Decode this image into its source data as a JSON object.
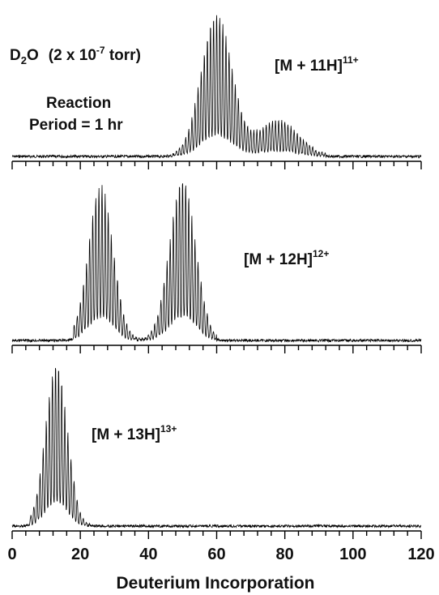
{
  "figure": {
    "conditions_line": "D2O (2 x 10-7 torr)",
    "reagent_formula": {
      "base": "D",
      "subscript": "2",
      "tail": "O"
    },
    "pressure": {
      "text": "(2 x 10",
      "exponent": "-7",
      "unit": " torr)"
    },
    "reaction_line_1": "Reaction",
    "reaction_line_2": "Period = 1 hr",
    "x_axis_label": "Deuterium Incorporation"
  },
  "chart_data": [
    {
      "type": "line",
      "panel": "top",
      "series": [
        {
          "name": "[M + 11H]11+",
          "label_base": "[M + 11H]",
          "label_sup": "11+",
          "envelopes": [
            {
              "center": 60.0,
              "width": 4.5,
              "height": 0.97
            },
            {
              "center": 78.0,
              "width": 6.0,
              "height": 0.25
            }
          ],
          "peak_range": [
            44,
            92
          ]
        }
      ],
      "xlim": [
        0,
        120
      ],
      "x_major_step": 20,
      "x_minor_step": 4,
      "tick_labels_shown": false
    },
    {
      "type": "line",
      "panel": "middle",
      "series": [
        {
          "name": "[M + 12H]12+",
          "label_base": "[M + 12H]",
          "label_sup": "12+",
          "envelopes": [
            {
              "center": 26.0,
              "width": 3.6,
              "height": 0.92
            },
            {
              "center": 50.0,
              "width": 3.8,
              "height": 0.96
            }
          ],
          "peak_range": [
            18,
            60
          ]
        }
      ],
      "xlim": [
        0,
        120
      ],
      "x_major_step": 20,
      "x_minor_step": 4,
      "tick_labels_shown": false
    },
    {
      "type": "line",
      "panel": "bottom",
      "series": [
        {
          "name": "[M + 13H]13+",
          "label_base": "[M + 13H]",
          "label_sup": "13+",
          "envelopes": [
            {
              "center": 13.0,
              "width": 3.2,
              "height": 0.95
            }
          ],
          "peak_range": [
            5,
            23
          ]
        }
      ],
      "xlim": [
        0,
        120
      ],
      "x_major_step": 20,
      "x_minor_step": 4,
      "xlabel": "Deuterium Incorporation",
      "x_tick_labels": [
        "0",
        "20",
        "40",
        "60",
        "80",
        "100",
        "120"
      ],
      "tick_labels_shown": true
    }
  ]
}
